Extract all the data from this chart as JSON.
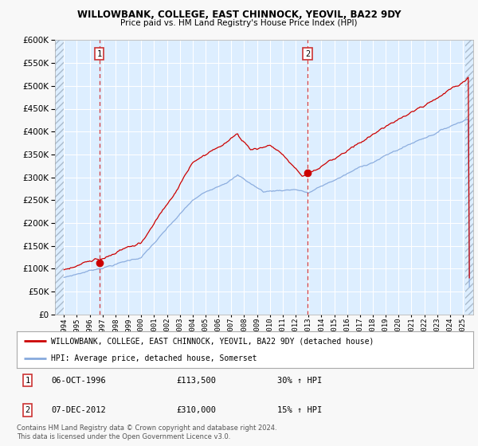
{
  "title1": "WILLOWBANK, COLLEGE, EAST CHINNOCK, YEOVIL, BA22 9DY",
  "title2": "Price paid vs. HM Land Registry's House Price Index (HPI)",
  "legend_line1": "WILLOWBANK, COLLEGE, EAST CHINNOCK, YEOVIL, BA22 9DY (detached house)",
  "legend_line2": "HPI: Average price, detached house, Somerset",
  "annotation1_date": "06-OCT-1996",
  "annotation1_price": "£113,500",
  "annotation1_hpi": "30% ↑ HPI",
  "annotation2_date": "07-DEC-2012",
  "annotation2_price": "£310,000",
  "annotation2_hpi": "15% ↑ HPI",
  "footnote": "Contains HM Land Registry data © Crown copyright and database right 2024.\nThis data is licensed under the Open Government Licence v3.0.",
  "red_color": "#cc0000",
  "blue_color": "#88aadd",
  "plot_bg_color": "#ddeeff",
  "fig_bg_color": "#f8f8f8",
  "grid_color": "#ffffff",
  "ylim": [
    0,
    600000
  ],
  "xlim_start": 1993.3,
  "xlim_end": 2025.8,
  "hatch_end": 1994.0,
  "sale1_year": 1996.77,
  "sale1_price": 113500,
  "sale2_year": 2012.92,
  "sale2_price": 310000
}
